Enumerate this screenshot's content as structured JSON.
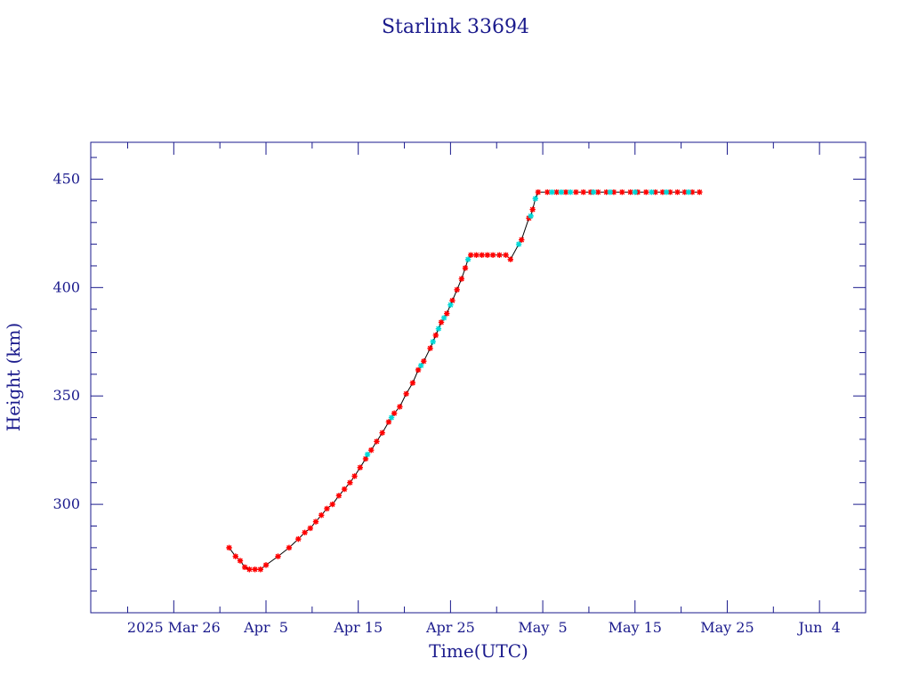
{
  "chart_data": {
    "type": "scatter",
    "title": "Starlink 33694",
    "xlabel": "Time(UTC)",
    "ylabel": "Height (km)",
    "x_range_days": [
      -14,
      70
    ],
    "x_origin": "2025 Mar 26",
    "ylim": [
      250,
      467
    ],
    "y_ticks": [
      {
        "value": 300,
        "label": "300"
      },
      {
        "value": 350,
        "label": "350"
      },
      {
        "value": 400,
        "label": "400"
      },
      {
        "value": 450,
        "label": "450"
      }
    ],
    "x_ticks": [
      {
        "day": -5,
        "label": "2025 Mar 26"
      },
      {
        "day": 5,
        "label": "Apr  5"
      },
      {
        "day": 15,
        "label": "Apr 15"
      },
      {
        "day": 25,
        "label": "Apr 25"
      },
      {
        "day": 35,
        "label": "May  5"
      },
      {
        "day": 45,
        "label": "May 15"
      },
      {
        "day": 55,
        "label": "May 25"
      },
      {
        "day": 65,
        "label": "Jun  4"
      }
    ],
    "colors": {
      "axis": "#1a1a8c",
      "line": "#000000",
      "series_primary": "#ff0000",
      "series_secondary": "#00d8d8"
    },
    "series": [
      {
        "marker": "star",
        "color": "#ff0000",
        "points": [
          [
            1.0,
            280
          ],
          [
            1.7,
            276
          ],
          [
            2.2,
            274
          ],
          [
            2.7,
            271
          ],
          [
            3.2,
            270
          ],
          [
            3.8,
            270
          ],
          [
            4.4,
            270
          ],
          [
            5.0,
            272
          ],
          [
            6.3,
            276
          ],
          [
            7.5,
            280
          ],
          [
            8.5,
            284
          ],
          [
            9.2,
            287
          ],
          [
            9.8,
            289
          ],
          [
            10.4,
            292
          ],
          [
            11.0,
            295
          ],
          [
            11.6,
            298
          ],
          [
            12.2,
            300
          ],
          [
            12.9,
            304
          ],
          [
            13.5,
            307
          ],
          [
            14.1,
            310
          ],
          [
            14.6,
            313
          ],
          [
            15.2,
            317
          ],
          [
            15.8,
            321
          ],
          [
            16.4,
            325
          ],
          [
            17.0,
            329
          ],
          [
            17.6,
            333
          ],
          [
            18.3,
            338
          ],
          [
            18.9,
            342
          ],
          [
            19.5,
            345
          ],
          [
            20.2,
            351
          ],
          [
            20.9,
            356
          ],
          [
            21.5,
            362
          ],
          [
            22.1,
            366
          ],
          [
            22.8,
            372
          ],
          [
            23.4,
            378
          ],
          [
            24.0,
            384
          ],
          [
            24.6,
            388
          ],
          [
            25.2,
            394
          ],
          [
            25.7,
            399
          ],
          [
            26.2,
            404
          ],
          [
            26.6,
            409
          ],
          [
            27.2,
            415
          ],
          [
            27.8,
            415
          ],
          [
            28.4,
            415
          ],
          [
            29.0,
            415
          ],
          [
            29.6,
            415
          ],
          [
            30.3,
            415
          ],
          [
            31.0,
            415
          ],
          [
            31.5,
            413
          ],
          [
            32.7,
            422
          ],
          [
            33.5,
            432
          ],
          [
            33.9,
            436
          ],
          [
            34.5,
            444
          ],
          [
            35.5,
            444
          ],
          [
            36.5,
            444
          ],
          [
            37.5,
            444
          ],
          [
            38.6,
            444
          ],
          [
            39.4,
            444
          ],
          [
            40.2,
            444
          ],
          [
            41.0,
            444
          ],
          [
            41.9,
            444
          ],
          [
            42.7,
            444
          ],
          [
            43.6,
            444
          ],
          [
            44.5,
            444
          ],
          [
            45.3,
            444
          ],
          [
            46.2,
            444
          ],
          [
            47.2,
            444
          ],
          [
            48.0,
            444
          ],
          [
            48.8,
            444
          ],
          [
            49.6,
            444
          ],
          [
            50.4,
            444
          ],
          [
            51.2,
            444
          ],
          [
            52.0,
            444
          ]
        ]
      },
      {
        "marker": "star",
        "color": "#00d8d8",
        "points": [
          [
            16.0,
            323
          ],
          [
            18.6,
            340
          ],
          [
            21.8,
            364
          ],
          [
            23.1,
            375
          ],
          [
            23.7,
            381
          ],
          [
            24.3,
            386
          ],
          [
            25.0,
            392
          ],
          [
            26.9,
            413
          ],
          [
            32.4,
            420
          ],
          [
            33.7,
            433
          ],
          [
            34.2,
            441
          ],
          [
            36.0,
            444
          ],
          [
            37.0,
            444
          ],
          [
            38.0,
            444
          ],
          [
            40.5,
            444
          ],
          [
            42.3,
            444
          ],
          [
            45.0,
            444
          ],
          [
            46.8,
            444
          ],
          [
            48.4,
            444
          ],
          [
            50.8,
            444
          ]
        ]
      }
    ]
  }
}
